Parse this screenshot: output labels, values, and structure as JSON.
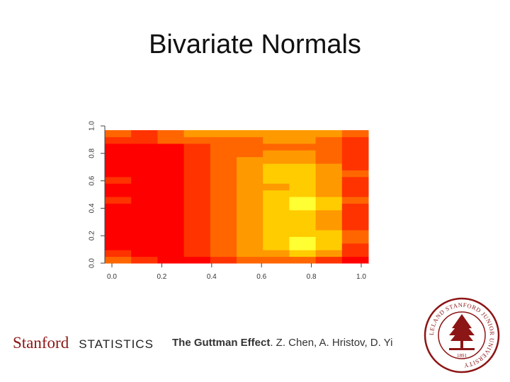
{
  "slide": {
    "title": "Bivariate Normals"
  },
  "footer": {
    "logo_text": "Stanford",
    "department": "STATISTICS",
    "citation_title": "The Guttman Effect",
    "citation_rest": ". Z. Chen, A. Hristov, D. Yi",
    "seal_text": "LELAND STANFORD JUNIOR UNIVERSITY",
    "seal_year": "1891"
  },
  "colors": {
    "brand": "#8c1515"
  },
  "chart_data": {
    "type": "heatmap",
    "x": [
      0.05,
      0.15,
      0.25,
      0.35,
      0.45,
      0.55,
      0.65,
      0.75,
      0.85,
      0.95
    ],
    "y": [
      0.025,
      0.075,
      0.125,
      0.175,
      0.225,
      0.275,
      0.325,
      0.375,
      0.425,
      0.475,
      0.525,
      0.575,
      0.625,
      0.675,
      0.725,
      0.775,
      0.825,
      0.875,
      0.925,
      0.975
    ],
    "x_ticks": [
      "0.0",
      "0.2",
      "0.4",
      "0.6",
      "0.8",
      "1.0"
    ],
    "y_ticks": [
      "0.0",
      "0.2",
      "0.4",
      "0.6",
      "0.8",
      "1.0"
    ],
    "xlim": [
      0,
      1
    ],
    "ylim": [
      0,
      1
    ],
    "colormap": [
      "#ff0000",
      "#ff3300",
      "#ff6600",
      "#ff9900",
      "#ffcc00",
      "#ffff33"
    ],
    "values": [
      [
        2,
        1,
        0,
        0,
        1,
        2,
        2,
        2,
        1,
        0
      ],
      [
        1,
        0,
        0,
        1,
        2,
        3,
        3,
        4,
        3,
        1
      ],
      [
        0,
        0,
        0,
        1,
        2,
        3,
        4,
        5,
        4,
        1
      ],
      [
        0,
        0,
        0,
        1,
        2,
        3,
        4,
        5,
        4,
        2
      ],
      [
        0,
        0,
        0,
        1,
        2,
        3,
        4,
        4,
        4,
        2
      ],
      [
        0,
        0,
        0,
        1,
        2,
        3,
        4,
        4,
        3,
        1
      ],
      [
        0,
        0,
        0,
        1,
        2,
        3,
        4,
        4,
        3,
        1
      ],
      [
        0,
        0,
        0,
        1,
        2,
        3,
        4,
        4,
        3,
        1
      ],
      [
        0,
        0,
        0,
        1,
        2,
        3,
        4,
        5,
        4,
        1
      ],
      [
        1,
        0,
        0,
        1,
        2,
        3,
        4,
        5,
        4,
        2
      ],
      [
        0,
        0,
        0,
        1,
        2,
        3,
        4,
        4,
        3,
        1
      ],
      [
        0,
        0,
        0,
        1,
        2,
        3,
        3,
        4,
        3,
        1
      ],
      [
        1,
        0,
        0,
        1,
        2,
        3,
        4,
        4,
        3,
        1
      ],
      [
        0,
        0,
        0,
        1,
        2,
        3,
        4,
        4,
        3,
        2
      ],
      [
        0,
        0,
        0,
        1,
        2,
        3,
        4,
        4,
        3,
        1
      ],
      [
        0,
        0,
        0,
        1,
        2,
        3,
        3,
        3,
        2,
        1
      ],
      [
        0,
        0,
        0,
        1,
        2,
        2,
        3,
        3,
        2,
        1
      ],
      [
        0,
        0,
        0,
        1,
        2,
        2,
        2,
        2,
        2,
        1
      ],
      [
        1,
        1,
        2,
        2,
        2,
        2,
        3,
        3,
        2,
        1
      ],
      [
        2,
        1,
        2,
        3,
        3,
        3,
        3,
        3,
        3,
        2
      ]
    ]
  }
}
